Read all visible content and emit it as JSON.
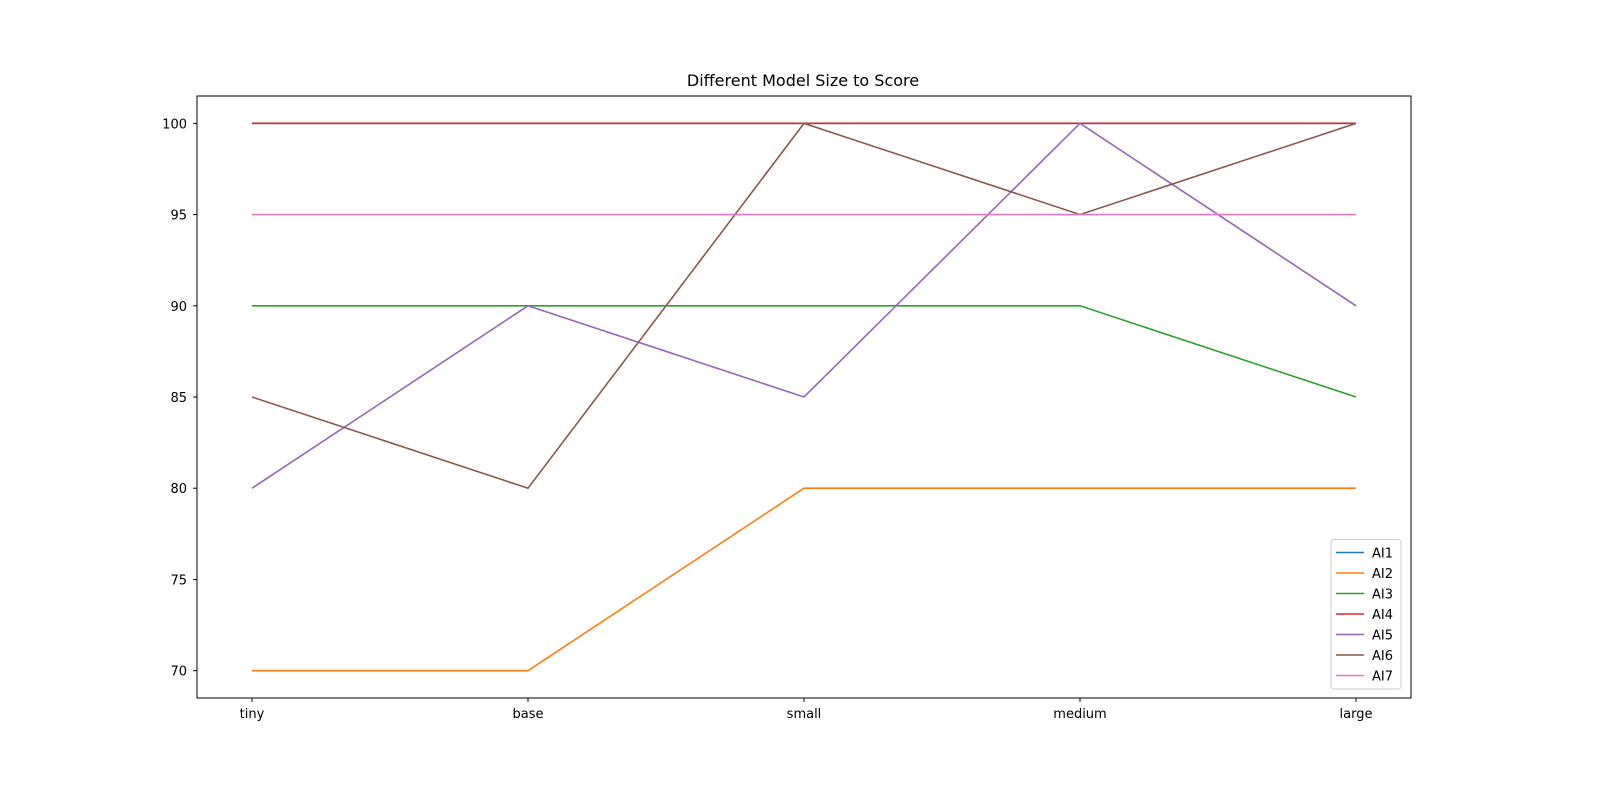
{
  "chart_data": {
    "type": "line",
    "title": "Different Model Size to Score",
    "xlabel": "",
    "ylabel": "",
    "categories": [
      "tiny",
      "base",
      "small",
      "medium",
      "large"
    ],
    "ylim": [
      68.5,
      101.5
    ],
    "yticks": [
      70,
      75,
      80,
      85,
      90,
      95,
      100
    ],
    "grid": false,
    "legend_position": "lower-right",
    "series": [
      {
        "name": "AI1",
        "color": "#1f77b4",
        "values": [
          100,
          100,
          100,
          100,
          100
        ]
      },
      {
        "name": "AI2",
        "color": "#ff7f0e",
        "values": [
          70,
          70,
          80,
          80,
          80
        ]
      },
      {
        "name": "AI3",
        "color": "#2ca02c",
        "values": [
          90,
          90,
          90,
          90,
          85
        ]
      },
      {
        "name": "AI4",
        "color": "#d62728",
        "values": [
          100,
          100,
          100,
          100,
          100
        ]
      },
      {
        "name": "AI5",
        "color": "#9467bd",
        "values": [
          80,
          90,
          85,
          100,
          90
        ]
      },
      {
        "name": "AI6",
        "color": "#8c564b",
        "values": [
          85,
          80,
          100,
          95,
          100
        ]
      },
      {
        "name": "AI7",
        "color": "#e377c2",
        "values": [
          95,
          95,
          95,
          95,
          95
        ]
      }
    ]
  }
}
